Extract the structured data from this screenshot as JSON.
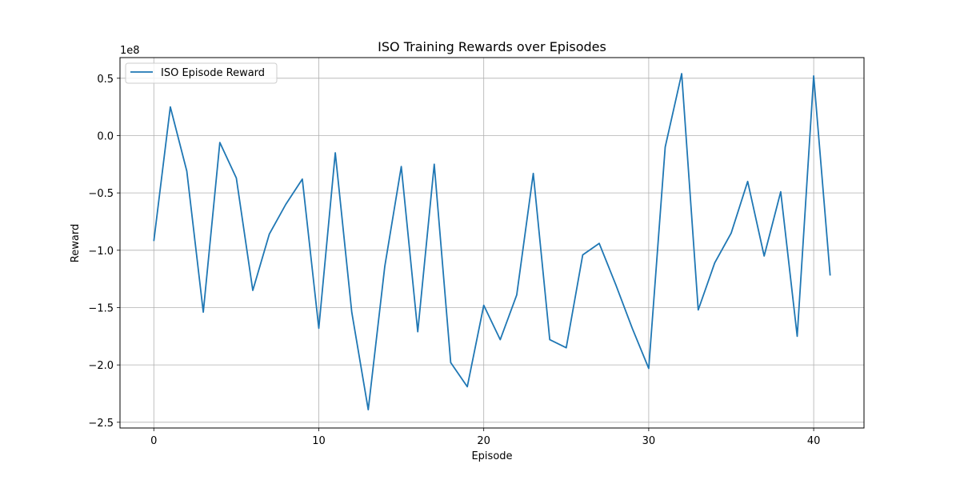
{
  "chart_data": {
    "type": "line",
    "title": "ISO Training Rewards over Episodes",
    "xlabel": "Episode",
    "ylabel": "Reward",
    "y_offset_label": "1e8",
    "xlim": [
      -2.05,
      43.05
    ],
    "ylim": [
      -2.55,
      0.68
    ],
    "x_ticks": [
      0,
      10,
      20,
      30,
      40
    ],
    "y_ticks": [
      0.5,
      0.0,
      -0.5,
      -1.0,
      -1.5,
      -2.0,
      -2.5
    ],
    "y_tick_labels": [
      "0.5",
      "0.0",
      "−0.5",
      "−1.0",
      "−1.5",
      "−2.0",
      "−2.5"
    ],
    "grid": true,
    "legend_position": "top-left",
    "series": [
      {
        "name": "ISO Episode Reward",
        "color": "#1f77b4",
        "x": [
          0,
          1,
          2,
          3,
          4,
          5,
          6,
          7,
          8,
          9,
          10,
          11,
          12,
          13,
          14,
          15,
          16,
          17,
          18,
          19,
          20,
          21,
          22,
          23,
          24,
          25,
          26,
          27,
          28,
          29,
          30,
          31,
          32,
          33,
          34,
          35,
          36,
          37,
          38,
          39,
          40,
          41
        ],
        "values": [
          -0.92,
          0.25,
          -0.31,
          -1.54,
          -0.06,
          -0.37,
          -1.35,
          -0.86,
          -0.6,
          -0.38,
          -1.68,
          -0.15,
          -1.54,
          -2.39,
          -1.14,
          -0.27,
          -1.71,
          -0.25,
          -1.98,
          -2.19,
          -1.48,
          -1.78,
          -1.39,
          -0.33,
          -1.78,
          -1.85,
          -1.04,
          -0.94,
          -1.3,
          -1.68,
          -2.03,
          -0.1,
          0.54,
          -1.52,
          -1.11,
          -0.85,
          -0.4,
          -1.05,
          -0.49,
          -1.75,
          0.52,
          -1.22
        ]
      }
    ]
  }
}
